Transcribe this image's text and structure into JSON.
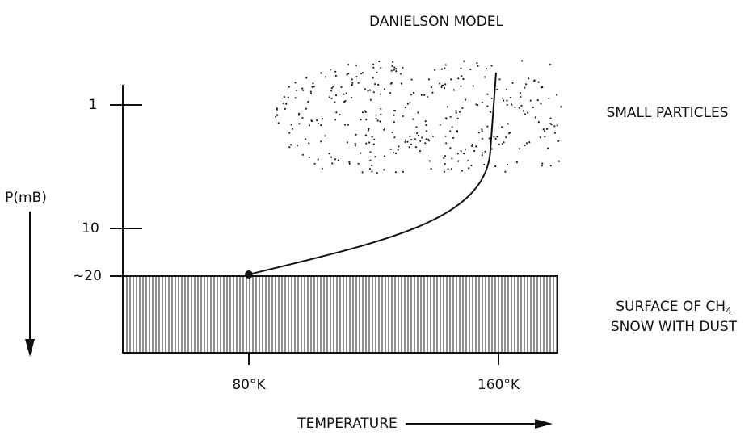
{
  "title": "DANIELSON MODEL",
  "y_axis": {
    "label": "P(mB)",
    "ticks": [
      "1",
      "10",
      "~20"
    ]
  },
  "x_axis": {
    "label": "TEMPERATURE",
    "ticks": [
      "80°K",
      "160°K"
    ]
  },
  "annotations": {
    "upper": "SMALL PARTICLES",
    "lower": {
      "line1": "SURFACE OF CH",
      "subscript": "4",
      "line2": "SNOW WITH DUST"
    }
  }
}
